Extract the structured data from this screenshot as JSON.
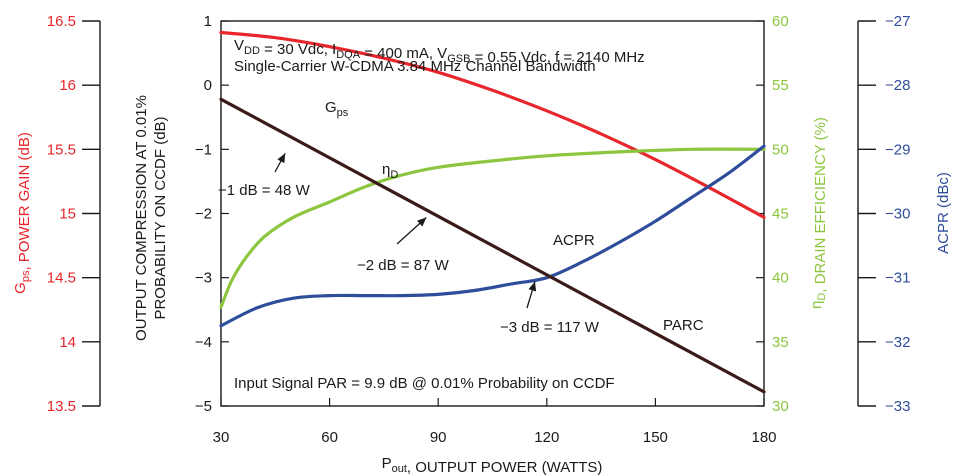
{
  "chart_data": {
    "type": "line",
    "x": {
      "label": "P_out, OUTPUT POWER (WATTS)",
      "label_main": "P",
      "label_sub": "out",
      "label_rest": ", OUTPUT POWER (WATTS)",
      "ticks": [
        30,
        60,
        90,
        120,
        150,
        180
      ],
      "lim": [
        30,
        180
      ]
    },
    "axes": {
      "gain": {
        "label_main": "G",
        "label_sub": "ps",
        "label_rest": ", POWER GAIN (dB)",
        "ticks": [
          "16.5",
          "16",
          "15.5",
          "15",
          "14.5",
          "14",
          "13.5"
        ],
        "lim": [
          13.5,
          16.5
        ],
        "color": "#e8262b"
      },
      "parc": {
        "label_line1": "OUTPUT COMPRESSION AT 0.01%",
        "label_line2": "PROBABILITY ON CCDF (dB)",
        "ticks": [
          "1",
          "0",
          "−1",
          "−2",
          "−3",
          "−4",
          "−5"
        ],
        "lim": [
          -5,
          1
        ],
        "color": "#1a1a1a"
      },
      "eff": {
        "label_main": "η",
        "label_sub": "D",
        "label_rest": ", DRAIN EFFICIENCY (%)",
        "ticks": [
          "60",
          "55",
          "50",
          "45",
          "40",
          "35",
          "30"
        ],
        "lim": [
          30,
          60
        ],
        "color": "#8cc63f"
      },
      "acpr": {
        "label": "ACPR (dBc)",
        "ticks": [
          "−27",
          "−28",
          "−29",
          "−30",
          "−31",
          "−32",
          "−33"
        ],
        "lim": [
          -33,
          -27
        ],
        "color": "#2e4d9b"
      }
    },
    "series": [
      {
        "name": "G",
        "name_sub": "ps",
        "axis": "gain",
        "color": "#e8262b",
        "x": [
          30,
          45,
          60,
          75,
          90,
          105,
          120,
          135,
          150,
          165,
          180
        ],
        "y": [
          16.41,
          16.37,
          16.3,
          16.21,
          16.1,
          15.96,
          15.8,
          15.62,
          15.42,
          15.2,
          14.97
        ]
      },
      {
        "name": "η",
        "name_sub": "D",
        "axis": "eff",
        "color": "#8cc63f",
        "x": [
          30,
          33,
          37,
          42,
          50,
          60,
          70,
          80,
          90,
          105,
          120,
          140,
          160,
          180
        ],
        "y": [
          37.7,
          39.8,
          41.6,
          43.2,
          44.7,
          45.9,
          47.1,
          48.0,
          48.6,
          49.1,
          49.5,
          49.8,
          50.0,
          50.0
        ]
      },
      {
        "name": "ACPR",
        "axis": "acpr",
        "color": "#2e4d9b",
        "x": [
          30,
          40,
          50,
          60,
          70,
          80,
          90,
          100,
          110,
          120,
          130,
          140,
          150,
          160,
          170,
          180
        ],
        "y": [
          -31.75,
          -31.47,
          -31.32,
          -31.28,
          -31.28,
          -31.28,
          -31.26,
          -31.2,
          -31.1,
          -31.0,
          -30.75,
          -30.45,
          -30.12,
          -29.75,
          -29.38,
          -28.95
        ]
      },
      {
        "name": "PARC",
        "axis": "parc",
        "color": "#3b1a1a",
        "x": [
          30,
          180
        ],
        "y": [
          -0.22,
          -4.78
        ]
      }
    ],
    "annotations": [
      {
        "text": "−1 dB = 48 W",
        "x": 48,
        "y": -1
      },
      {
        "text": "−2 dB = 87 W",
        "x": 87,
        "y": -2
      },
      {
        "text": "−3 dB = 117 W",
        "x": 117,
        "y": -3
      }
    ],
    "conditions": {
      "line1_parts": [
        {
          "t": "V",
          "s": "DD"
        },
        {
          "t": " = 30 Vdc, I",
          "s": "DQA"
        },
        {
          "t": " = 400 mA, V",
          "s": "GSB"
        },
        {
          "t": " = 0.55 Vdc, f = 2140 MHz",
          "s": ""
        }
      ],
      "line2": "Single-Carrier W-CDMA 3.84 MHz Channel Bandwidth",
      "bottom": "Input Signal PAR = 9.9 dB @ 0.01% Probability on CCDF"
    },
    "grid": false
  }
}
